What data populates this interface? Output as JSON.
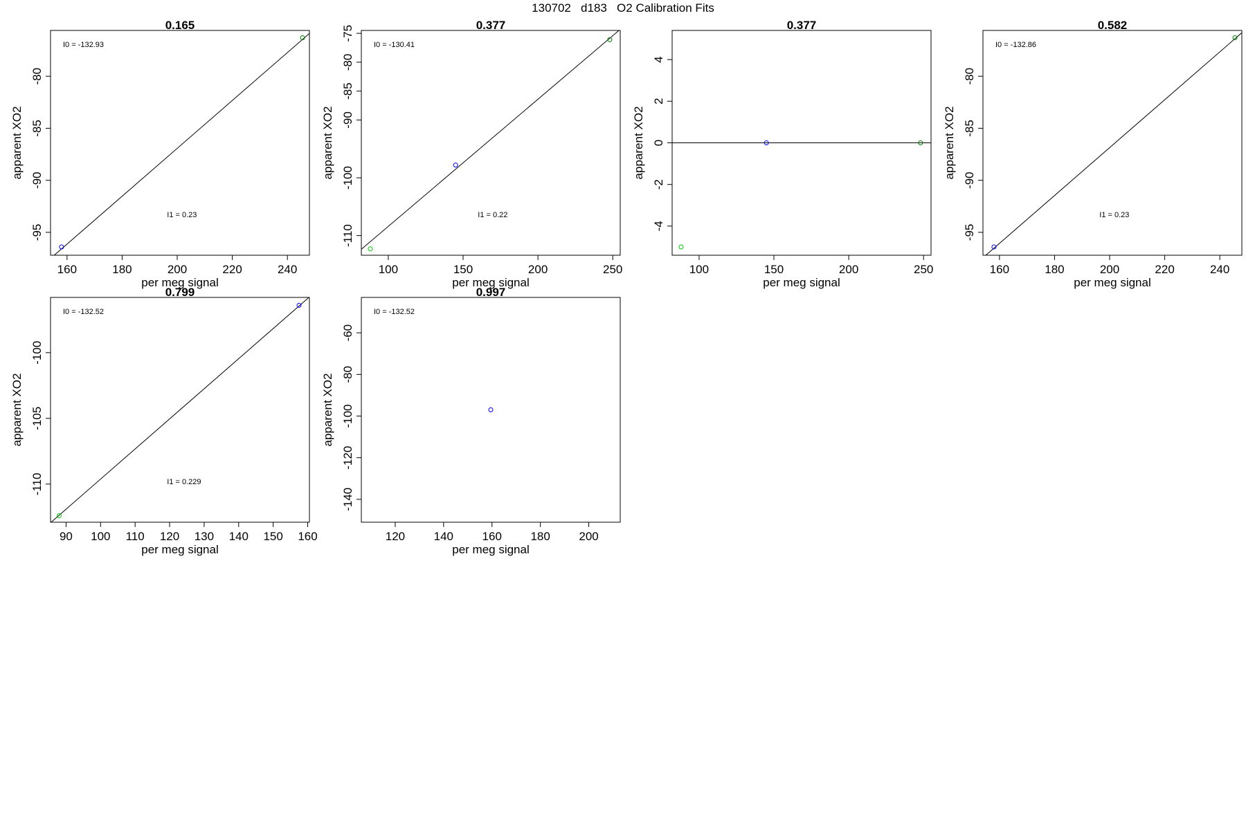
{
  "page": {
    "title": "130702   d183   O2 Calibration Fits"
  },
  "chart_data": [
    {
      "type": "scatter",
      "title": "0.165",
      "xlabel": "per meg signal",
      "ylabel": "apparent XO2",
      "xlim": [
        154,
        248
      ],
      "ylim": [
        -97.2,
        -75.6
      ],
      "xticks": [
        160,
        180,
        200,
        220,
        240
      ],
      "yticks": [
        -95,
        -90,
        -85,
        -80
      ],
      "annotations": {
        "I0": "I0 =  -132.93",
        "I1": "I1 =  0.23"
      },
      "points": [
        {
          "x": 158,
          "y": -96.4,
          "color": "#0000ff"
        },
        {
          "x": 245.5,
          "y": -76.3,
          "color": "#008000"
        }
      ],
      "fit_line": {
        "intercept": -132.93,
        "slope": 0.23
      },
      "grid": false
    },
    {
      "type": "scatter",
      "title": "0.377",
      "xlabel": "per meg signal",
      "ylabel": "apparent XO2",
      "xlim": [
        82,
        255
      ],
      "ylim": [
        -113.4,
        -74.5
      ],
      "xticks": [
        100,
        150,
        200,
        250
      ],
      "yticks": [
        -110,
        -100,
        -90,
        -85,
        -80,
        -75
      ],
      "annotations": {
        "I0": "I0 =  -130.41",
        "I1": "I1 =  0.22"
      },
      "points": [
        {
          "x": 88,
          "y": -112.3,
          "color": "#00cc00"
        },
        {
          "x": 145,
          "y": -97.8,
          "color": "#0000ff"
        },
        {
          "x": 248,
          "y": -76.1,
          "color": "#008000"
        }
      ],
      "fit_line": {
        "intercept": -130.41,
        "slope": 0.22
      },
      "grid": false
    },
    {
      "type": "scatter",
      "title": "0.377",
      "xlabel": "per meg signal",
      "ylabel": "apparent XO2",
      "xlim": [
        82,
        255
      ],
      "ylim": [
        -5.4,
        5.4
      ],
      "xticks": [
        100,
        150,
        200,
        250
      ],
      "yticks": [
        -4,
        -2,
        0,
        2,
        4
      ],
      "annotations": {},
      "points": [
        {
          "x": 88,
          "y": -5.0,
          "color": "#00cc00"
        },
        {
          "x": 145,
          "y": 0,
          "color": "#0000ff"
        },
        {
          "x": 248,
          "y": 0,
          "color": "#008000"
        }
      ],
      "fit_line": {
        "intercept": 0,
        "slope": 0
      },
      "grid": false
    },
    {
      "type": "scatter",
      "title": "0.582",
      "xlabel": "per meg signal",
      "ylabel": "apparent XO2",
      "xlim": [
        154,
        248
      ],
      "ylim": [
        -97.2,
        -75.6
      ],
      "xticks": [
        160,
        180,
        200,
        220,
        240
      ],
      "yticks": [
        -95,
        -90,
        -85,
        -80
      ],
      "annotations": {
        "I0": "I0 =  -132.86",
        "I1": "I1 =  0.23"
      },
      "points": [
        {
          "x": 158,
          "y": -96.4,
          "color": "#0000ff"
        },
        {
          "x": 245.5,
          "y": -76.3,
          "color": "#008000"
        }
      ],
      "fit_line": {
        "intercept": -132.86,
        "slope": 0.23
      },
      "grid": false
    },
    {
      "type": "scatter",
      "title": "0.799",
      "xlabel": "per meg signal",
      "ylabel": "apparent XO2",
      "xlim": [
        85.5,
        160.5
      ],
      "ylim": [
        -112.9,
        -95.8
      ],
      "xticks": [
        90,
        100,
        110,
        120,
        130,
        140,
        150,
        160
      ],
      "yticks": [
        -110,
        -105,
        -100
      ],
      "annotations": {
        "I0": "I0 =  -132.52",
        "I1": "I1 =  0.229"
      },
      "points": [
        {
          "x": 88,
          "y": -112.4,
          "color": "#00cc00"
        },
        {
          "x": 157.5,
          "y": -96.4,
          "color": "#0000ff"
        }
      ],
      "fit_line": {
        "intercept": -132.52,
        "slope": 0.229
      },
      "grid": false
    },
    {
      "type": "scatter",
      "title": "0.997",
      "xlabel": "per meg signal",
      "ylabel": "apparent XO2",
      "xlim": [
        106,
        213
      ],
      "ylim": [
        -151,
        -43
      ],
      "xticks": [
        120,
        140,
        160,
        180,
        200
      ],
      "yticks": [
        -140,
        -120,
        -100,
        -80,
        -60
      ],
      "annotations": {
        "I0": "I0 =  -132.52"
      },
      "points": [
        {
          "x": 159.5,
          "y": -97.0,
          "color": "#0000ff"
        }
      ],
      "grid": false
    }
  ]
}
